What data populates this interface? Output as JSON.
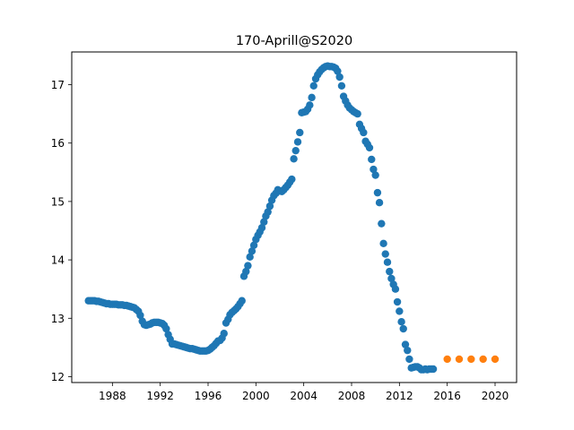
{
  "chart_data": {
    "type": "scatter",
    "title": "170-Aprill@S2020",
    "xlabel": "",
    "ylabel": "",
    "xlim": [
      1984.6,
      2021.8
    ],
    "ylim": [
      11.9,
      17.56
    ],
    "x_ticks": [
      1988,
      1992,
      1996,
      2000,
      2004,
      2008,
      2012,
      2016,
      2020
    ],
    "y_ticks": [
      12,
      13,
      14,
      15,
      16,
      17
    ],
    "grid": false,
    "series": [
      {
        "color": "#1f77b4",
        "points": [
          [
            1986.0,
            13.3
          ],
          [
            1986.17,
            13.3
          ],
          [
            1986.33,
            13.3
          ],
          [
            1986.5,
            13.3
          ],
          [
            1986.67,
            13.29
          ],
          [
            1986.83,
            13.29
          ],
          [
            1987.0,
            13.28
          ],
          [
            1987.17,
            13.27
          ],
          [
            1987.33,
            13.26
          ],
          [
            1987.5,
            13.25
          ],
          [
            1987.67,
            13.25
          ],
          [
            1987.83,
            13.24
          ],
          [
            1988.0,
            13.24
          ],
          [
            1988.17,
            13.24
          ],
          [
            1988.33,
            13.24
          ],
          [
            1988.5,
            13.23
          ],
          [
            1988.67,
            13.23
          ],
          [
            1988.83,
            13.23
          ],
          [
            1989.0,
            13.22
          ],
          [
            1989.17,
            13.22
          ],
          [
            1989.33,
            13.21
          ],
          [
            1989.5,
            13.2
          ],
          [
            1989.67,
            13.19
          ],
          [
            1989.83,
            13.18
          ],
          [
            1990.0,
            13.15
          ],
          [
            1990.17,
            13.12
          ],
          [
            1990.33,
            13.05
          ],
          [
            1990.5,
            12.95
          ],
          [
            1990.67,
            12.89
          ],
          [
            1990.83,
            12.88
          ],
          [
            1991.0,
            12.89
          ],
          [
            1991.17,
            12.9
          ],
          [
            1991.33,
            12.92
          ],
          [
            1991.5,
            12.93
          ],
          [
            1991.67,
            12.93
          ],
          [
            1991.83,
            12.93
          ],
          [
            1992.0,
            12.92
          ],
          [
            1992.17,
            12.91
          ],
          [
            1992.33,
            12.88
          ],
          [
            1992.5,
            12.82
          ],
          [
            1992.67,
            12.72
          ],
          [
            1992.83,
            12.64
          ],
          [
            1993.0,
            12.56
          ],
          [
            1993.17,
            12.56
          ],
          [
            1993.33,
            12.55
          ],
          [
            1993.5,
            12.54
          ],
          [
            1993.67,
            12.53
          ],
          [
            1993.83,
            12.52
          ],
          [
            1994.0,
            12.51
          ],
          [
            1994.17,
            12.5
          ],
          [
            1994.33,
            12.49
          ],
          [
            1994.5,
            12.48
          ],
          [
            1994.67,
            12.48
          ],
          [
            1994.83,
            12.47
          ],
          [
            1995.0,
            12.46
          ],
          [
            1995.17,
            12.45
          ],
          [
            1995.33,
            12.44
          ],
          [
            1995.5,
            12.44
          ],
          [
            1995.67,
            12.44
          ],
          [
            1995.83,
            12.44
          ],
          [
            1996.0,
            12.45
          ],
          [
            1996.17,
            12.47
          ],
          [
            1996.33,
            12.5
          ],
          [
            1996.5,
            12.53
          ],
          [
            1996.67,
            12.57
          ],
          [
            1996.83,
            12.61
          ],
          [
            1997.0,
            12.62
          ],
          [
            1997.17,
            12.66
          ],
          [
            1997.33,
            12.74
          ],
          [
            1997.5,
            12.92
          ],
          [
            1997.67,
            12.98
          ],
          [
            1997.83,
            13.06
          ],
          [
            1998.0,
            13.1
          ],
          [
            1998.17,
            13.13
          ],
          [
            1998.33,
            13.16
          ],
          [
            1998.5,
            13.2
          ],
          [
            1998.67,
            13.25
          ],
          [
            1998.83,
            13.3
          ],
          [
            1999.0,
            13.72
          ],
          [
            1999.17,
            13.8
          ],
          [
            1999.33,
            13.9
          ],
          [
            1999.5,
            14.05
          ],
          [
            1999.67,
            14.15
          ],
          [
            1999.83,
            14.25
          ],
          [
            2000.0,
            14.35
          ],
          [
            2000.17,
            14.42
          ],
          [
            2000.33,
            14.48
          ],
          [
            2000.5,
            14.55
          ],
          [
            2000.67,
            14.65
          ],
          [
            2000.83,
            14.75
          ],
          [
            2001.0,
            14.82
          ],
          [
            2001.17,
            14.92
          ],
          [
            2001.33,
            15.02
          ],
          [
            2001.5,
            15.1
          ],
          [
            2001.67,
            15.14
          ],
          [
            2001.83,
            15.2
          ],
          [
            2002.0,
            15.18
          ],
          [
            2002.17,
            15.17
          ],
          [
            2002.33,
            15.2
          ],
          [
            2002.5,
            15.24
          ],
          [
            2002.67,
            15.28
          ],
          [
            2002.83,
            15.33
          ],
          [
            2003.0,
            15.38
          ],
          [
            2003.17,
            15.73
          ],
          [
            2003.33,
            15.87
          ],
          [
            2003.5,
            16.02
          ],
          [
            2003.67,
            16.18
          ],
          [
            2003.83,
            16.52
          ],
          [
            2004.0,
            16.53
          ],
          [
            2004.17,
            16.54
          ],
          [
            2004.33,
            16.58
          ],
          [
            2004.5,
            16.65
          ],
          [
            2004.67,
            16.78
          ],
          [
            2004.83,
            16.98
          ],
          [
            2005.0,
            17.1
          ],
          [
            2005.17,
            17.17
          ],
          [
            2005.33,
            17.22
          ],
          [
            2005.5,
            17.26
          ],
          [
            2005.67,
            17.29
          ],
          [
            2005.83,
            17.31
          ],
          [
            2006.0,
            17.32
          ],
          [
            2006.17,
            17.31
          ],
          [
            2006.33,
            17.31
          ],
          [
            2006.5,
            17.3
          ],
          [
            2006.67,
            17.28
          ],
          [
            2006.83,
            17.23
          ],
          [
            2007.0,
            17.13
          ],
          [
            2007.17,
            16.98
          ],
          [
            2007.33,
            16.8
          ],
          [
            2007.5,
            16.72
          ],
          [
            2007.67,
            16.65
          ],
          [
            2007.83,
            16.6
          ],
          [
            2008.0,
            16.57
          ],
          [
            2008.17,
            16.54
          ],
          [
            2008.33,
            16.52
          ],
          [
            2008.5,
            16.5
          ],
          [
            2008.67,
            16.32
          ],
          [
            2008.83,
            16.25
          ],
          [
            2009.0,
            16.18
          ],
          [
            2009.17,
            16.03
          ],
          [
            2009.33,
            15.98
          ],
          [
            2009.5,
            15.92
          ],
          [
            2009.67,
            15.72
          ],
          [
            2009.83,
            15.55
          ],
          [
            2010.0,
            15.45
          ],
          [
            2010.17,
            15.15
          ],
          [
            2010.33,
            14.98
          ],
          [
            2010.5,
            14.62
          ],
          [
            2010.67,
            14.28
          ],
          [
            2010.83,
            14.1
          ],
          [
            2011.0,
            13.96
          ],
          [
            2011.17,
            13.8
          ],
          [
            2011.33,
            13.68
          ],
          [
            2011.5,
            13.58
          ],
          [
            2011.67,
            13.5
          ],
          [
            2011.83,
            13.28
          ],
          [
            2012.0,
            13.12
          ],
          [
            2012.17,
            12.94
          ],
          [
            2012.33,
            12.82
          ],
          [
            2012.5,
            12.55
          ],
          [
            2012.67,
            12.45
          ],
          [
            2012.83,
            12.3
          ],
          [
            2013.0,
            12.15
          ],
          [
            2013.17,
            12.16
          ],
          [
            2013.33,
            12.17
          ],
          [
            2013.5,
            12.17
          ],
          [
            2013.67,
            12.15
          ],
          [
            2013.83,
            12.12
          ],
          [
            2014.0,
            12.12
          ],
          [
            2014.17,
            12.13
          ],
          [
            2014.33,
            12.12
          ],
          [
            2014.5,
            12.13
          ],
          [
            2014.67,
            12.13
          ],
          [
            2014.83,
            12.13
          ]
        ]
      },
      {
        "color": "#ff7f0e",
        "points": [
          [
            2016,
            12.3
          ],
          [
            2017,
            12.3
          ],
          [
            2018,
            12.3
          ],
          [
            2019,
            12.3
          ],
          [
            2020,
            12.3
          ]
        ]
      }
    ]
  }
}
